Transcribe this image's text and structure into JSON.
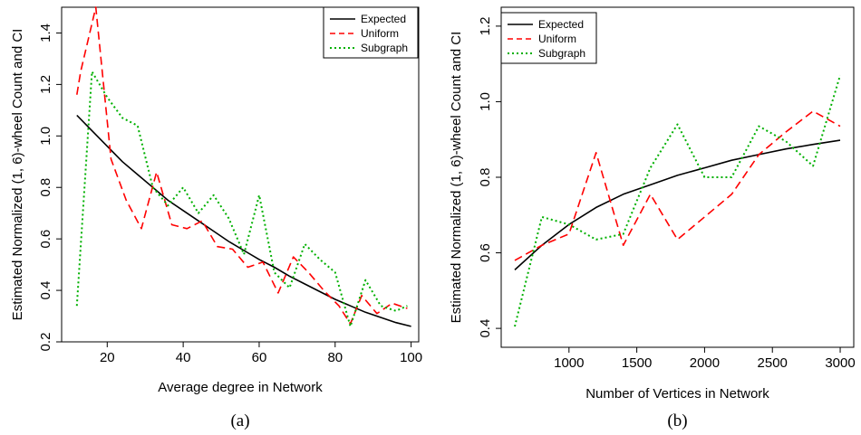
{
  "chart_data": [
    {
      "type": "line",
      "caption": "(a)",
      "xlabel": "Average degree in Network",
      "ylabel": "Estimated Normalized (1, 6)-wheel Count and CI",
      "xlim": [
        8,
        102
      ],
      "ylim": [
        0.2,
        1.5
      ],
      "xticks": [
        20,
        40,
        60,
        80,
        100
      ],
      "yticks": [
        0.2,
        0.4,
        0.6,
        0.8,
        1.0,
        1.2,
        1.4
      ],
      "ytick_labels": [
        "0.2",
        "0.4",
        "0.6",
        "0.8",
        "1.0",
        "1.2",
        "1.4"
      ],
      "legend_position": "top-right",
      "series": [
        {
          "name": "Expected",
          "color": "#000000",
          "style": "solid",
          "x": [
            12,
            16,
            20,
            24,
            28,
            32,
            36,
            40,
            44,
            48,
            52,
            56,
            60,
            64,
            68,
            72,
            76,
            80,
            84,
            88,
            92,
            96,
            100
          ],
          "y": [
            1.08,
            1.02,
            0.96,
            0.9,
            0.85,
            0.8,
            0.75,
            0.71,
            0.67,
            0.63,
            0.59,
            0.555,
            0.52,
            0.49,
            0.455,
            0.425,
            0.395,
            0.365,
            0.34,
            0.315,
            0.295,
            0.275,
            0.26
          ]
        },
        {
          "name": "Uniform",
          "color": "#ff0000",
          "style": "dashed",
          "x": [
            12,
            13,
            17,
            21,
            25,
            29,
            33,
            37,
            41,
            45,
            49,
            53,
            57,
            61,
            65,
            69,
            73,
            77,
            81,
            84,
            87,
            91,
            95,
            99
          ],
          "y": [
            1.16,
            1.25,
            1.5,
            0.91,
            0.75,
            0.64,
            0.86,
            0.655,
            0.64,
            0.67,
            0.57,
            0.56,
            0.49,
            0.51,
            0.39,
            0.53,
            0.47,
            0.4,
            0.34,
            0.27,
            0.38,
            0.31,
            0.35,
            0.33
          ]
        },
        {
          "name": "Subgraph",
          "color": "#00b000",
          "style": "dotted",
          "x": [
            12,
            16,
            20,
            24,
            28,
            32,
            36,
            40,
            44,
            48,
            52,
            56,
            60,
            64,
            68,
            72,
            76,
            80,
            84,
            88,
            92,
            96,
            99
          ],
          "y": [
            0.34,
            1.25,
            1.15,
            1.07,
            1.04,
            0.8,
            0.73,
            0.8,
            0.7,
            0.77,
            0.68,
            0.54,
            0.77,
            0.47,
            0.41,
            0.58,
            0.52,
            0.47,
            0.26,
            0.44,
            0.34,
            0.32,
            0.34
          ]
        }
      ]
    },
    {
      "type": "line",
      "caption": "(b)",
      "xlabel": "Number of Vertices in Network",
      "ylabel": "Estimated Normalized (1, 6)-wheel Count and CI",
      "xlim": [
        500,
        3100
      ],
      "ylim": [
        0.35,
        1.25
      ],
      "xticks": [
        1000,
        1500,
        2000,
        2500,
        3000
      ],
      "yticks": [
        0.4,
        0.6,
        0.8,
        1.0,
        1.2
      ],
      "ytick_labels": [
        "0.4",
        "0.6",
        "0.8",
        "1.0",
        "1.2"
      ],
      "legend_position": "top-left",
      "series": [
        {
          "name": "Expected",
          "color": "#000000",
          "style": "solid",
          "x": [
            600,
            800,
            1000,
            1200,
            1400,
            1600,
            1800,
            2000,
            2200,
            2400,
            2600,
            2800,
            3000
          ],
          "y": [
            0.555,
            0.62,
            0.675,
            0.72,
            0.755,
            0.78,
            0.805,
            0.825,
            0.845,
            0.86,
            0.875,
            0.887,
            0.898
          ]
        },
        {
          "name": "Uniform",
          "color": "#ff0000",
          "style": "dashed",
          "x": [
            600,
            800,
            1000,
            1200,
            1400,
            1600,
            1800,
            2000,
            2200,
            2400,
            2600,
            2800,
            3000
          ],
          "y": [
            0.58,
            0.62,
            0.65,
            0.865,
            0.62,
            0.755,
            0.635,
            0.695,
            0.755,
            0.86,
            0.92,
            0.975,
            0.935
          ]
        },
        {
          "name": "Subgraph",
          "color": "#00b000",
          "style": "dotted",
          "x": [
            600,
            800,
            1000,
            1200,
            1400,
            1600,
            1800,
            2000,
            2200,
            2400,
            2600,
            2800,
            3000
          ],
          "y": [
            0.405,
            0.695,
            0.675,
            0.635,
            0.65,
            0.825,
            0.94,
            0.8,
            0.8,
            0.935,
            0.895,
            0.83,
            1.07
          ]
        }
      ]
    }
  ]
}
